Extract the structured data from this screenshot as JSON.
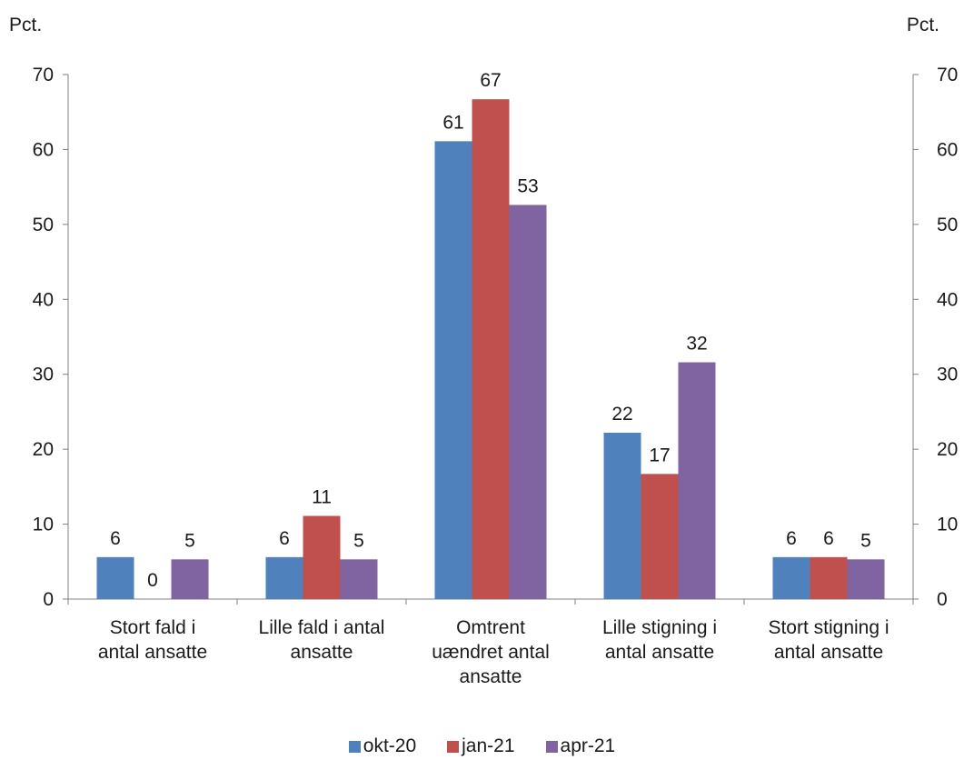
{
  "chart_data": {
    "type": "bar",
    "left_unit": "Pct.",
    "right_unit": "Pct.",
    "ylim": [
      0,
      70
    ],
    "yticks": [
      0,
      10,
      20,
      30,
      40,
      50,
      60,
      70
    ],
    "categories": [
      [
        "Stort fald i",
        "antal ansatte"
      ],
      [
        "Lille fald i antal",
        "ansatte"
      ],
      [
        "Omtrent",
        "uændret antal",
        "ansatte"
      ],
      [
        "Lille stigning i",
        "antal ansatte"
      ],
      [
        "Stort stigning i",
        "antal ansatte"
      ]
    ],
    "series": [
      {
        "name": "okt-20",
        "color": "#4f81bd",
        "values": [
          5.6,
          5.6,
          61.1,
          22.2,
          5.6
        ],
        "labels": [
          "6",
          "6",
          "61",
          "22",
          "6"
        ]
      },
      {
        "name": "jan-21",
        "color": "#c0504d",
        "values": [
          0,
          11.1,
          66.7,
          16.7,
          5.6
        ],
        "labels": [
          "0",
          "11",
          "67",
          "17",
          "6"
        ]
      },
      {
        "name": "apr-21",
        "color": "#8064a2",
        "values": [
          5.3,
          5.3,
          52.6,
          31.6,
          5.3
        ],
        "labels": [
          "5",
          "5",
          "53",
          "32",
          "5"
        ]
      }
    ],
    "grid": false,
    "legend_position": "bottom"
  }
}
